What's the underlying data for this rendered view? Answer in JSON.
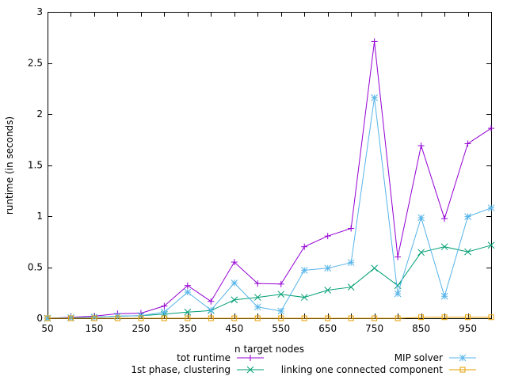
{
  "chart_data": {
    "type": "line",
    "title": "",
    "xlabel": "n target nodes",
    "ylabel": "runtime (in seconds)",
    "xlim": [
      50,
      1000
    ],
    "ylim": [
      0,
      3
    ],
    "x_ticks": [
      50,
      150,
      250,
      350,
      450,
      550,
      650,
      750,
      850,
      950
    ],
    "x_tick_labels": [
      "50",
      "150",
      "250",
      "350",
      "450",
      "550",
      "650",
      "750",
      "850",
      "950"
    ],
    "y_ticks": [
      0,
      0.5,
      1,
      1.5,
      2,
      2.5,
      3
    ],
    "y_tick_labels": [
      "0",
      "0.5",
      "1",
      "1.5",
      "2",
      "2.5",
      "3"
    ],
    "grid": false,
    "legend_position": "bottom",
    "x": [
      50,
      100,
      150,
      200,
      250,
      300,
      350,
      400,
      450,
      500,
      550,
      600,
      650,
      700,
      750,
      800,
      850,
      900,
      950,
      1000
    ],
    "series": [
      {
        "name": "tot runtime",
        "color": "#9400d3",
        "marker": "plus",
        "values": [
          0.0,
          0.01,
          0.02,
          0.045,
          0.05,
          0.12,
          0.32,
          0.165,
          0.55,
          0.34,
          0.335,
          0.7,
          0.805,
          0.88,
          2.71,
          0.6,
          1.69,
          0.975,
          1.71,
          1.86
        ]
      },
      {
        "name": "1st phase, clustering",
        "color": "#009e73",
        "marker": "x",
        "values": [
          0.0,
          0.005,
          0.01,
          0.02,
          0.025,
          0.04,
          0.06,
          0.075,
          0.18,
          0.205,
          0.235,
          0.205,
          0.275,
          0.305,
          0.49,
          0.32,
          0.645,
          0.7,
          0.65,
          0.715
        ]
      },
      {
        "name": "MIP solver",
        "color": "#56b4e9",
        "marker": "asterisk",
        "values": [
          0.0,
          0.005,
          0.01,
          0.02,
          0.025,
          0.06,
          0.255,
          0.08,
          0.345,
          0.11,
          0.07,
          0.47,
          0.49,
          0.545,
          2.16,
          0.24,
          0.985,
          0.215,
          0.995,
          1.08
        ]
      },
      {
        "name": "linking one connected component",
        "color": "#e69f00",
        "marker": "square",
        "values": [
          0.0,
          0.0,
          0.0,
          0.0,
          0.0,
          0.0,
          0.0,
          0.0,
          0.0,
          0.0,
          0.0,
          0.0,
          0.0,
          0.0,
          0.0,
          0.0,
          0.01,
          0.01,
          0.01,
          0.01
        ]
      }
    ]
  }
}
